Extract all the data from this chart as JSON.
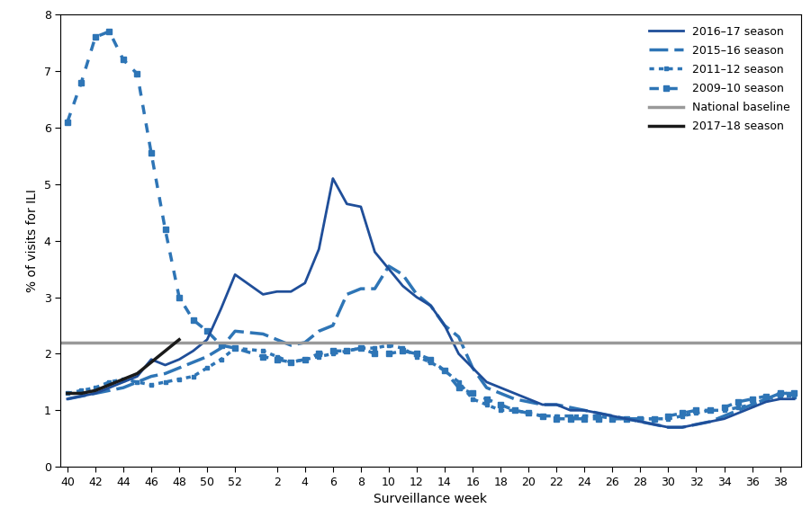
{
  "xlabel": "Surveillance week",
  "ylabel": "% of visits for ILI",
  "ylim": [
    0,
    8
  ],
  "yticks": [
    0,
    1,
    2,
    3,
    4,
    5,
    6,
    7,
    8
  ],
  "national_baseline": 2.2,
  "season_2016_17": {
    "x": [
      40,
      41,
      42,
      43,
      44,
      45,
      46,
      47,
      48,
      49,
      50,
      51,
      52,
      1,
      2,
      3,
      4,
      5,
      6,
      7,
      8,
      9,
      10,
      11,
      12,
      13,
      14,
      15,
      16,
      17,
      18,
      19,
      20,
      21,
      22,
      23,
      24,
      25,
      26,
      27,
      28,
      29,
      30,
      31,
      32,
      33,
      34,
      35,
      36,
      37,
      38,
      39
    ],
    "y": [
      1.2,
      1.25,
      1.3,
      1.4,
      1.5,
      1.6,
      1.9,
      1.8,
      1.9,
      2.05,
      2.25,
      2.8,
      3.4,
      3.05,
      3.1,
      3.1,
      3.25,
      3.85,
      5.1,
      4.65,
      4.6,
      3.8,
      3.5,
      3.2,
      3.0,
      2.85,
      2.5,
      2.0,
      1.75,
      1.5,
      1.4,
      1.3,
      1.2,
      1.1,
      1.1,
      1.0,
      1.0,
      0.95,
      0.9,
      0.85,
      0.8,
      0.75,
      0.7,
      0.7,
      0.75,
      0.8,
      0.85,
      0.95,
      1.05,
      1.15,
      1.2,
      1.2
    ],
    "color": "#1f4e99",
    "label": "2016–17 season"
  },
  "season_2015_16": {
    "x": [
      40,
      41,
      42,
      43,
      44,
      45,
      46,
      47,
      48,
      49,
      50,
      51,
      52,
      1,
      2,
      3,
      4,
      5,
      6,
      7,
      8,
      9,
      10,
      11,
      12,
      13,
      14,
      15,
      16,
      17,
      18,
      19,
      20,
      21,
      22,
      23,
      24,
      25,
      26,
      27,
      28,
      29,
      30,
      31,
      32,
      33,
      34,
      35,
      36,
      37,
      38,
      39
    ],
    "y": [
      1.2,
      1.25,
      1.3,
      1.35,
      1.4,
      1.5,
      1.6,
      1.65,
      1.75,
      1.85,
      1.95,
      2.1,
      2.4,
      2.35,
      2.25,
      2.15,
      2.2,
      2.4,
      2.5,
      3.05,
      3.15,
      3.15,
      3.55,
      3.4,
      3.05,
      2.85,
      2.5,
      2.3,
      1.75,
      1.4,
      1.3,
      1.2,
      1.15,
      1.1,
      1.1,
      1.05,
      1.0,
      0.95,
      0.9,
      0.85,
      0.8,
      0.75,
      0.7,
      0.7,
      0.75,
      0.8,
      0.9,
      1.0,
      1.1,
      1.2,
      1.3,
      1.3
    ],
    "color": "#2e75b6",
    "label": "2015–16 season"
  },
  "season_2011_12": {
    "x": [
      40,
      41,
      42,
      43,
      44,
      45,
      46,
      47,
      48,
      49,
      50,
      51,
      52,
      1,
      2,
      3,
      4,
      5,
      6,
      7,
      8,
      9,
      10,
      11,
      12,
      13,
      14,
      15,
      16,
      17,
      18,
      19,
      20,
      21,
      22,
      23,
      24,
      25,
      26,
      27,
      28,
      29,
      30,
      31,
      32,
      33,
      34,
      35,
      36,
      37,
      38,
      39
    ],
    "y": [
      1.3,
      1.35,
      1.4,
      1.5,
      1.55,
      1.5,
      1.45,
      1.5,
      1.55,
      1.6,
      1.75,
      1.9,
      2.1,
      2.05,
      1.95,
      1.85,
      1.9,
      1.95,
      2.0,
      2.05,
      2.1,
      2.1,
      2.15,
      2.1,
      1.95,
      1.85,
      1.7,
      1.5,
      1.2,
      1.1,
      1.0,
      1.0,
      0.95,
      0.9,
      0.9,
      0.9,
      0.9,
      0.9,
      0.85,
      0.85,
      0.85,
      0.85,
      0.85,
      0.9,
      0.95,
      1.0,
      1.0,
      1.05,
      1.1,
      1.2,
      1.25,
      1.25
    ],
    "color": "#2e75b6",
    "label": "2011–12 season"
  },
  "season_2009_10": {
    "x": [
      40,
      41,
      42,
      43,
      44,
      45,
      46,
      47,
      48,
      49,
      50,
      51,
      52,
      1,
      2,
      3,
      4,
      5,
      6,
      7,
      8,
      9,
      10,
      11,
      12,
      13,
      14,
      15,
      16,
      17,
      18,
      19,
      20,
      21,
      22,
      23,
      24,
      25,
      26,
      27,
      28,
      29,
      30,
      31,
      32,
      33,
      34,
      35,
      36,
      37,
      38,
      39
    ],
    "y": [
      6.1,
      6.8,
      7.6,
      7.7,
      7.2,
      6.95,
      5.55,
      4.2,
      3.0,
      2.6,
      2.4,
      2.15,
      2.1,
      1.95,
      1.9,
      1.85,
      1.9,
      2.0,
      2.05,
      2.05,
      2.1,
      2.0,
      2.0,
      2.05,
      2.0,
      1.9,
      1.7,
      1.4,
      1.3,
      1.2,
      1.1,
      1.0,
      0.95,
      0.9,
      0.85,
      0.85,
      0.85,
      0.85,
      0.85,
      0.85,
      0.85,
      0.85,
      0.9,
      0.95,
      1.0,
      1.0,
      1.05,
      1.15,
      1.2,
      1.25,
      1.3,
      1.3
    ],
    "color": "#2e75b6",
    "label": "2009–10 season"
  },
  "season_2017_18": {
    "x": [
      40,
      41,
      42,
      43,
      44,
      45,
      46,
      47,
      48
    ],
    "y": [
      1.3,
      1.3,
      1.35,
      1.45,
      1.55,
      1.65,
      1.85,
      2.05,
      2.25
    ],
    "color": "#1a1a1a",
    "label": "2017–18 season"
  },
  "baseline_color": "#999999",
  "main_color": "#1f4e99",
  "blue_color": "#2e75b6"
}
